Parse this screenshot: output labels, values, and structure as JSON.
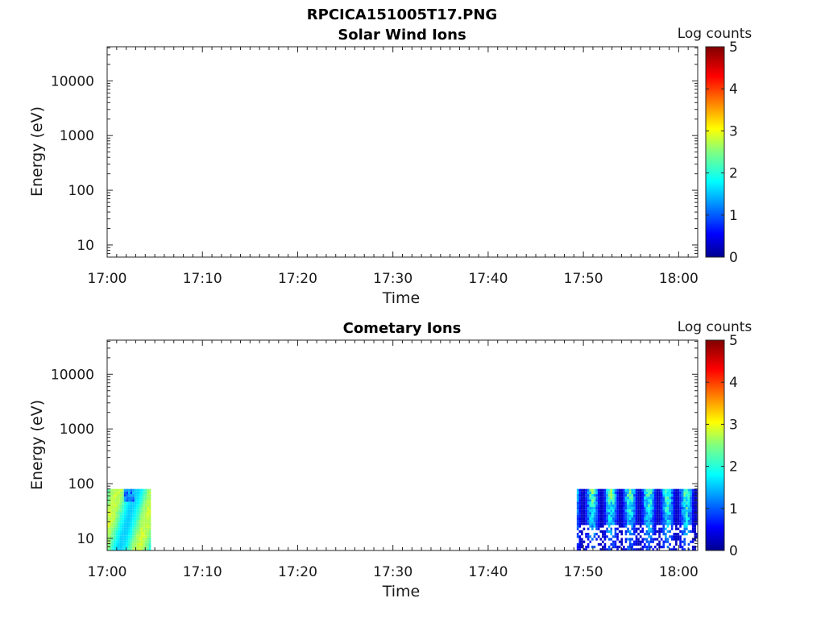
{
  "figure_title": "RPCICA151005T17.PNG",
  "chart_data": [
    {
      "type": "heatmap",
      "title": "Solar Wind Ions",
      "xlabel": "Time",
      "ylabel": "Energy (eV)",
      "x_scale": "time",
      "y_scale": "log",
      "xlim": [
        "17:00",
        "18:02"
      ],
      "ylim": [
        6,
        42000
      ],
      "x_ticks": [
        "17:00",
        "17:10",
        "17:20",
        "17:30",
        "17:40",
        "17:50",
        "18:00"
      ],
      "y_ticks": [
        "10",
        "100",
        "1000",
        "10000"
      ],
      "colorbar": {
        "label": "Log counts",
        "min": 0,
        "max": 5,
        "ticks": [
          "0",
          "1",
          "2",
          "3",
          "4",
          "5"
        ],
        "colormap": "jet"
      },
      "grid": false,
      "data_blocks": []
    },
    {
      "type": "heatmap",
      "title": "Cometary Ions",
      "xlabel": "Time",
      "ylabel": "Energy (eV)",
      "x_scale": "time",
      "y_scale": "log",
      "xlim": [
        "17:00",
        "18:02"
      ],
      "ylim": [
        6,
        42000
      ],
      "x_ticks": [
        "17:00",
        "17:10",
        "17:20",
        "17:30",
        "17:40",
        "17:50",
        "18:00"
      ],
      "y_ticks": [
        "10",
        "100",
        "1000",
        "10000"
      ],
      "colorbar": {
        "label": "Log counts",
        "min": 0,
        "max": 5,
        "ticks": [
          "0",
          "1",
          "2",
          "3",
          "4",
          "5"
        ],
        "colormap": "jet"
      },
      "grid": false,
      "data_blocks": [
        {
          "time_start": "17:00",
          "time_end": "17:04.6",
          "energy_min": 6,
          "energy_max": 80,
          "log_counts_typical": [
            1.5,
            3.0
          ]
        },
        {
          "time_start": "17:49.3",
          "time_end": "18:02",
          "energy_min": 6,
          "energy_max": 80,
          "log_counts_typical": [
            0.3,
            2.5
          ]
        }
      ]
    }
  ]
}
